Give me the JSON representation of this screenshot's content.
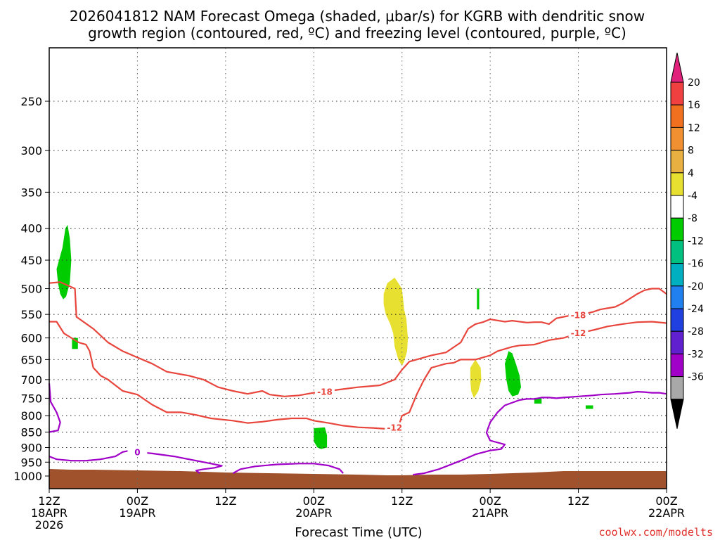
{
  "chart_data": {
    "type": "time-height contour",
    "title_line1": "2026041812 NAM Forecast Omega (shaded, μbar/s) for KGRB with dendritic snow",
    "title_line2": "growth region (contoured, red, ºC) and freezing level (contoured, purple, ºC)",
    "xlabel": "Forecast Time (UTC)",
    "credit": "coolwx.com/modelts",
    "x_range_hours": [
      0,
      84
    ],
    "y_range_hpa": [
      1000,
      200
    ],
    "y_ticks": [
      "250",
      "300",
      "350",
      "400",
      "450",
      "500",
      "550",
      "600",
      "650",
      "700",
      "750",
      "800",
      "850",
      "900",
      "950",
      "1000"
    ],
    "y_tick_values": [
      250,
      300,
      350,
      400,
      450,
      500,
      550,
      600,
      650,
      700,
      750,
      800,
      850,
      900,
      950,
      1000
    ],
    "x_ticks": [
      {
        "hour": 0,
        "line1": "12Z",
        "line2": "18APR",
        "line3": "2026"
      },
      {
        "hour": 12,
        "line1": "00Z",
        "line2": "19APR",
        "line3": ""
      },
      {
        "hour": 24,
        "line1": "12Z",
        "line2": "",
        "line3": ""
      },
      {
        "hour": 36,
        "line1": "00Z",
        "line2": "20APR",
        "line3": ""
      },
      {
        "hour": 48,
        "line1": "12Z",
        "line2": "",
        "line3": ""
      },
      {
        "hour": 60,
        "line1": "00Z",
        "line2": "21APR",
        "line3": ""
      },
      {
        "hour": 72,
        "line1": "12Z",
        "line2": "",
        "line3": ""
      },
      {
        "hour": 84,
        "line1": "00Z",
        "line2": "22APR",
        "line3": ""
      }
    ],
    "colorbar": {
      "labels": [
        "20",
        "16",
        "12",
        "8",
        "4",
        "-4",
        "-8",
        "-12",
        "-16",
        "-20",
        "-24",
        "-28",
        "-32",
        "-36"
      ],
      "colors": [
        "#f04040",
        "#f07020",
        "#f09030",
        "#e8b040",
        "#e8e030",
        "#ffffff",
        "#00cc00",
        "#00c080",
        "#00b0c0",
        "#2080f0",
        "#2040e0",
        "#6020d0",
        "#a000c8",
        "#a8a8a8"
      ],
      "top_arrow_color": "#e0207a",
      "bottom_arrow_color": "#000000"
    },
    "series": [
      {
        "name": "-18 C isotherm",
        "color": "#e8453c",
        "label": "-18",
        "points": [
          [
            0,
            490
          ],
          [
            1.5,
            488
          ],
          [
            3.5,
            500
          ],
          [
            3.7,
            555
          ],
          [
            6,
            580
          ],
          [
            8,
            610
          ],
          [
            10,
            630
          ],
          [
            12,
            645
          ],
          [
            14,
            660
          ],
          [
            16,
            680
          ],
          [
            19,
            690
          ],
          [
            21,
            700
          ],
          [
            23,
            720
          ],
          [
            25,
            730
          ],
          [
            27,
            738
          ],
          [
            29,
            730
          ],
          [
            30,
            740
          ],
          [
            32,
            745
          ],
          [
            34,
            742
          ],
          [
            36,
            735
          ],
          [
            37.5,
            735
          ],
          [
            38,
            730
          ],
          [
            40,
            725
          ],
          [
            42,
            720
          ],
          [
            45,
            715
          ],
          [
            47,
            700
          ],
          [
            48,
            675
          ],
          [
            49,
            655
          ],
          [
            52,
            640
          ],
          [
            54,
            633
          ],
          [
            56,
            610
          ],
          [
            57,
            580
          ],
          [
            58,
            570
          ],
          [
            59,
            566
          ],
          [
            60,
            560
          ],
          [
            62,
            565
          ],
          [
            63,
            563
          ],
          [
            65,
            567
          ],
          [
            66,
            566
          ],
          [
            67,
            566
          ],
          [
            68,
            570
          ],
          [
            69,
            558
          ],
          [
            71,
            552
          ],
          [
            72,
            552
          ],
          [
            74,
            545
          ],
          [
            75,
            540
          ],
          [
            77,
            535
          ],
          [
            78,
            528
          ],
          [
            80,
            510
          ],
          [
            81,
            503
          ],
          [
            82,
            500
          ],
          [
            83,
            500
          ],
          [
            84,
            510
          ]
        ]
      },
      {
        "name": "-12 C isotherm",
        "color": "#e8453c",
        "label": "-12",
        "points": [
          [
            0,
            565
          ],
          [
            1,
            565
          ],
          [
            2,
            590
          ],
          [
            4,
            610
          ],
          [
            5,
            615
          ],
          [
            5.5,
            630
          ],
          [
            6,
            670
          ],
          [
            7,
            690
          ],
          [
            8,
            700
          ],
          [
            10,
            730
          ],
          [
            12,
            740
          ],
          [
            14,
            768
          ],
          [
            16,
            790
          ],
          [
            18,
            790
          ],
          [
            20,
            798
          ],
          [
            22,
            808
          ],
          [
            25,
            815
          ],
          [
            27,
            822
          ],
          [
            29,
            818
          ],
          [
            31,
            812
          ],
          [
            33,
            808
          ],
          [
            35,
            808
          ],
          [
            36,
            815
          ],
          [
            38,
            822
          ],
          [
            40,
            830
          ],
          [
            42,
            835
          ],
          [
            44,
            837
          ],
          [
            46,
            840
          ],
          [
            47.5,
            835
          ],
          [
            48,
            800
          ],
          [
            49,
            790
          ],
          [
            50,
            740
          ],
          [
            51,
            700
          ],
          [
            52,
            670
          ],
          [
            54,
            660
          ],
          [
            55,
            658
          ],
          [
            56,
            650
          ],
          [
            58,
            650
          ],
          [
            59,
            645
          ],
          [
            60,
            640
          ],
          [
            61,
            630
          ],
          [
            62,
            625
          ],
          [
            63,
            620
          ],
          [
            64,
            617
          ],
          [
            66,
            615
          ],
          [
            68,
            605
          ],
          [
            70,
            600
          ],
          [
            72,
            590
          ],
          [
            74,
            583
          ],
          [
            76,
            575
          ],
          [
            78,
            570
          ],
          [
            80,
            566
          ],
          [
            82,
            565
          ],
          [
            84,
            568
          ]
        ]
      },
      {
        "name": "0 C freezing level",
        "color": "#a000c8",
        "label": "0",
        "points": [
          [
            0,
            930
          ],
          [
            1,
            940
          ],
          [
            3,
            945
          ],
          [
            5,
            945
          ],
          [
            7,
            940
          ],
          [
            9,
            930
          ],
          [
            10,
            915
          ],
          [
            11,
            910
          ],
          [
            12,
            915
          ],
          [
            14,
            920
          ],
          [
            17,
            930
          ],
          [
            20,
            945
          ],
          [
            22,
            955
          ],
          [
            23.5,
            963
          ],
          [
            22.5,
            970
          ],
          [
            21,
            975
          ],
          [
            20,
            980
          ],
          [
            20.5,
            990
          ]
        ]
      },
      {
        "name": "0 C left loop",
        "color": "#a000c8",
        "label": "",
        "points": [
          [
            0,
            710
          ],
          [
            0.2,
            760
          ],
          [
            1,
            790
          ],
          [
            1.5,
            820
          ],
          [
            1.2,
            845
          ],
          [
            0,
            850
          ]
        ]
      },
      {
        "name": "0 C ground contour 1",
        "color": "#a000c8",
        "label": "",
        "points": [
          [
            25,
            990
          ],
          [
            26,
            975
          ],
          [
            28,
            965
          ],
          [
            31,
            958
          ],
          [
            34,
            955
          ],
          [
            36,
            955
          ],
          [
            38,
            962
          ],
          [
            39.5,
            975
          ],
          [
            40,
            990
          ]
        ]
      },
      {
        "name": "0 C right branch",
        "color": "#a000c8",
        "label": "",
        "points": [
          [
            49.5,
            995
          ],
          [
            51,
            990
          ],
          [
            53,
            975
          ],
          [
            56,
            945
          ],
          [
            58,
            923
          ],
          [
            60,
            910
          ],
          [
            61.5,
            905
          ],
          [
            62,
            890
          ],
          [
            60,
            877
          ],
          [
            59.5,
            852
          ],
          [
            60,
            820
          ],
          [
            61,
            790
          ],
          [
            62,
            770
          ],
          [
            64,
            755
          ],
          [
            65,
            752
          ],
          [
            66,
            752
          ],
          [
            67,
            748
          ],
          [
            68,
            748
          ],
          [
            69,
            750
          ],
          [
            70,
            748
          ],
          [
            72,
            745
          ],
          [
            74,
            742
          ],
          [
            75,
            740
          ],
          [
            77,
            738
          ],
          [
            79,
            735
          ],
          [
            80,
            732
          ],
          [
            81,
            733
          ],
          [
            82,
            735
          ],
          [
            83,
            735
          ],
          [
            84,
            738
          ]
        ]
      }
    ],
    "shaded_regions": [
      {
        "name": "omega -4 to -8 (19Z 18APR)",
        "color": "#00cc00",
        "points": [
          [
            1.0,
            465
          ],
          [
            1.8,
            430
          ],
          [
            2.2,
            400
          ],
          [
            2.5,
            395
          ],
          [
            2.8,
            415
          ],
          [
            3.0,
            450
          ],
          [
            2.8,
            490
          ],
          [
            2.3,
            515
          ],
          [
            1.9,
            520
          ],
          [
            1.5,
            510
          ],
          [
            1.2,
            490
          ]
        ]
      },
      {
        "name": "omega -4 to -8 (20Z small)",
        "color": "#00cc00",
        "points": [
          [
            3.1,
            600
          ],
          [
            3.9,
            600
          ],
          [
            3.9,
            625
          ],
          [
            3.1,
            625
          ]
        ]
      },
      {
        "name": "omega -4 to -8 (00Z 20APR)",
        "color": "#00cc00",
        "points": [
          [
            36,
            838
          ],
          [
            37.5,
            835
          ],
          [
            37.8,
            860
          ],
          [
            37.8,
            900
          ],
          [
            37,
            905
          ],
          [
            36.5,
            900
          ],
          [
            36,
            880
          ]
        ]
      },
      {
        "name": "omega 4 to 8 (09Z 20APR)",
        "color": "#e8e030",
        "points": [
          [
            45.5,
            510
          ],
          [
            46,
            490
          ],
          [
            47,
            480
          ],
          [
            48,
            500
          ],
          [
            48.3,
            540
          ],
          [
            48.6,
            560
          ],
          [
            48.8,
            600
          ],
          [
            48.7,
            630
          ],
          [
            48.3,
            655
          ],
          [
            48,
            665
          ],
          [
            47.5,
            650
          ],
          [
            47,
            620
          ],
          [
            46.8,
            590
          ],
          [
            46.4,
            570
          ],
          [
            45.8,
            550
          ],
          [
            45.5,
            530
          ]
        ]
      },
      {
        "name": "omega 4 to 8 (22Z 20APR)",
        "color": "#e8e030",
        "points": [
          [
            57.3,
            670
          ],
          [
            58,
            650
          ],
          [
            58.7,
            670
          ],
          [
            58.8,
            700
          ],
          [
            58.4,
            730
          ],
          [
            57.8,
            750
          ],
          [
            57.4,
            730
          ],
          [
            57.3,
            700
          ]
        ]
      },
      {
        "name": "omega -4 to -8 (21Z thin)",
        "color": "#00cc00",
        "points": [
          [
            58.2,
            500
          ],
          [
            58.5,
            500
          ],
          [
            58.5,
            540
          ],
          [
            58.2,
            540
          ]
        ]
      },
      {
        "name": "omega -4 to -8 (03Z 21APR)",
        "color": "#00cc00",
        "points": [
          [
            62,
            660
          ],
          [
            62.5,
            630
          ],
          [
            63,
            635
          ],
          [
            63.5,
            660
          ],
          [
            64,
            690
          ],
          [
            64.2,
            720
          ],
          [
            63.8,
            740
          ],
          [
            63,
            745
          ],
          [
            62.5,
            730
          ],
          [
            62.2,
            700
          ]
        ]
      },
      {
        "name": "omega -4 to -8 (06Z 21APR)",
        "color": "#00cc00",
        "points": [
          [
            66,
            750
          ],
          [
            67,
            750
          ],
          [
            67,
            765
          ],
          [
            66,
            765
          ]
        ]
      },
      {
        "name": "omega -4 to -8 (13Z 21APR)",
        "color": "#00cc00",
        "points": [
          [
            73,
            770
          ],
          [
            74,
            770
          ],
          [
            74,
            780
          ],
          [
            73,
            780
          ]
        ]
      }
    ]
  }
}
